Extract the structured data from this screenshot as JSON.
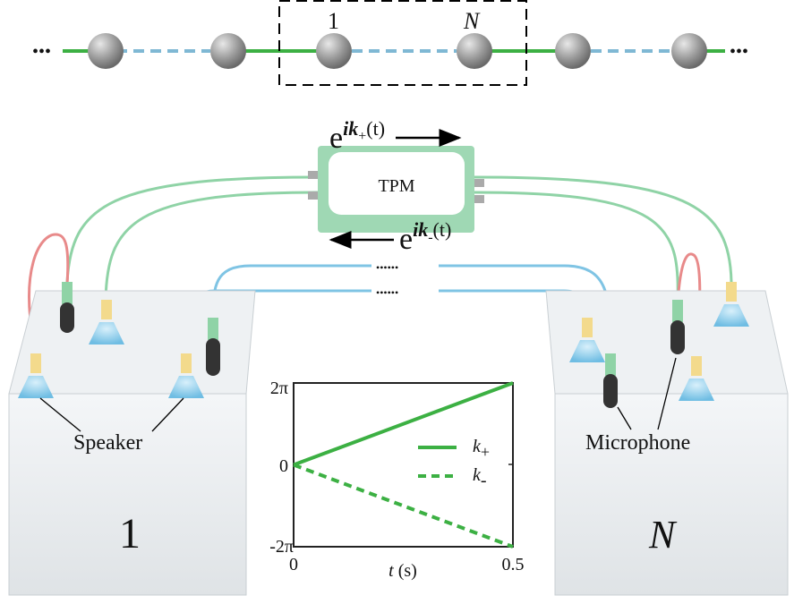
{
  "chain": {
    "left_ellipsis": "•••",
    "right_ellipsis": "•••",
    "first_label": "1",
    "last_label": "N"
  },
  "tpm": {
    "label": "TPM",
    "forward_base": "e",
    "forward_exp_i": "ik",
    "forward_sub": "+",
    "forward_arg": "(t)",
    "backward_base": "e",
    "backward_exp_i": "ik",
    "backward_sub": "-",
    "backward_arg": "(t)",
    "cable_ellipsis": "••••••"
  },
  "boxes": {
    "left_label": "1",
    "right_label": "N",
    "speaker_label": "Speaker",
    "microphone_label": "Microphone"
  },
  "colors": {
    "green_tube": "#8fd3a6",
    "blue_tube": "#7fc4e4",
    "red_tube": "#e88a8a",
    "chain_green": "#3cb043",
    "chain_blue": "#7fb8d4",
    "plot_green": "#3cb043"
  },
  "chart_data": {
    "type": "line",
    "xlabel_var": "t",
    "xlabel_unit": "(s)",
    "xlim": [
      0,
      0.5
    ],
    "ylim": [
      "-2π",
      "2π"
    ],
    "x_ticks": [
      "0",
      "0.5"
    ],
    "y_ticks": [
      "2π",
      "0",
      "-2π"
    ],
    "legend_placement": "right",
    "series": [
      {
        "name": "k+",
        "label_base": "k",
        "label_sub": "+",
        "style": "solid",
        "x": [
          0,
          0.5
        ],
        "y_over_pi": [
          0,
          2
        ]
      },
      {
        "name": "k-",
        "label_base": "k",
        "label_sub": "-",
        "style": "dashed",
        "x": [
          0,
          0.5
        ],
        "y_over_pi": [
          0,
          -2
        ]
      }
    ]
  }
}
